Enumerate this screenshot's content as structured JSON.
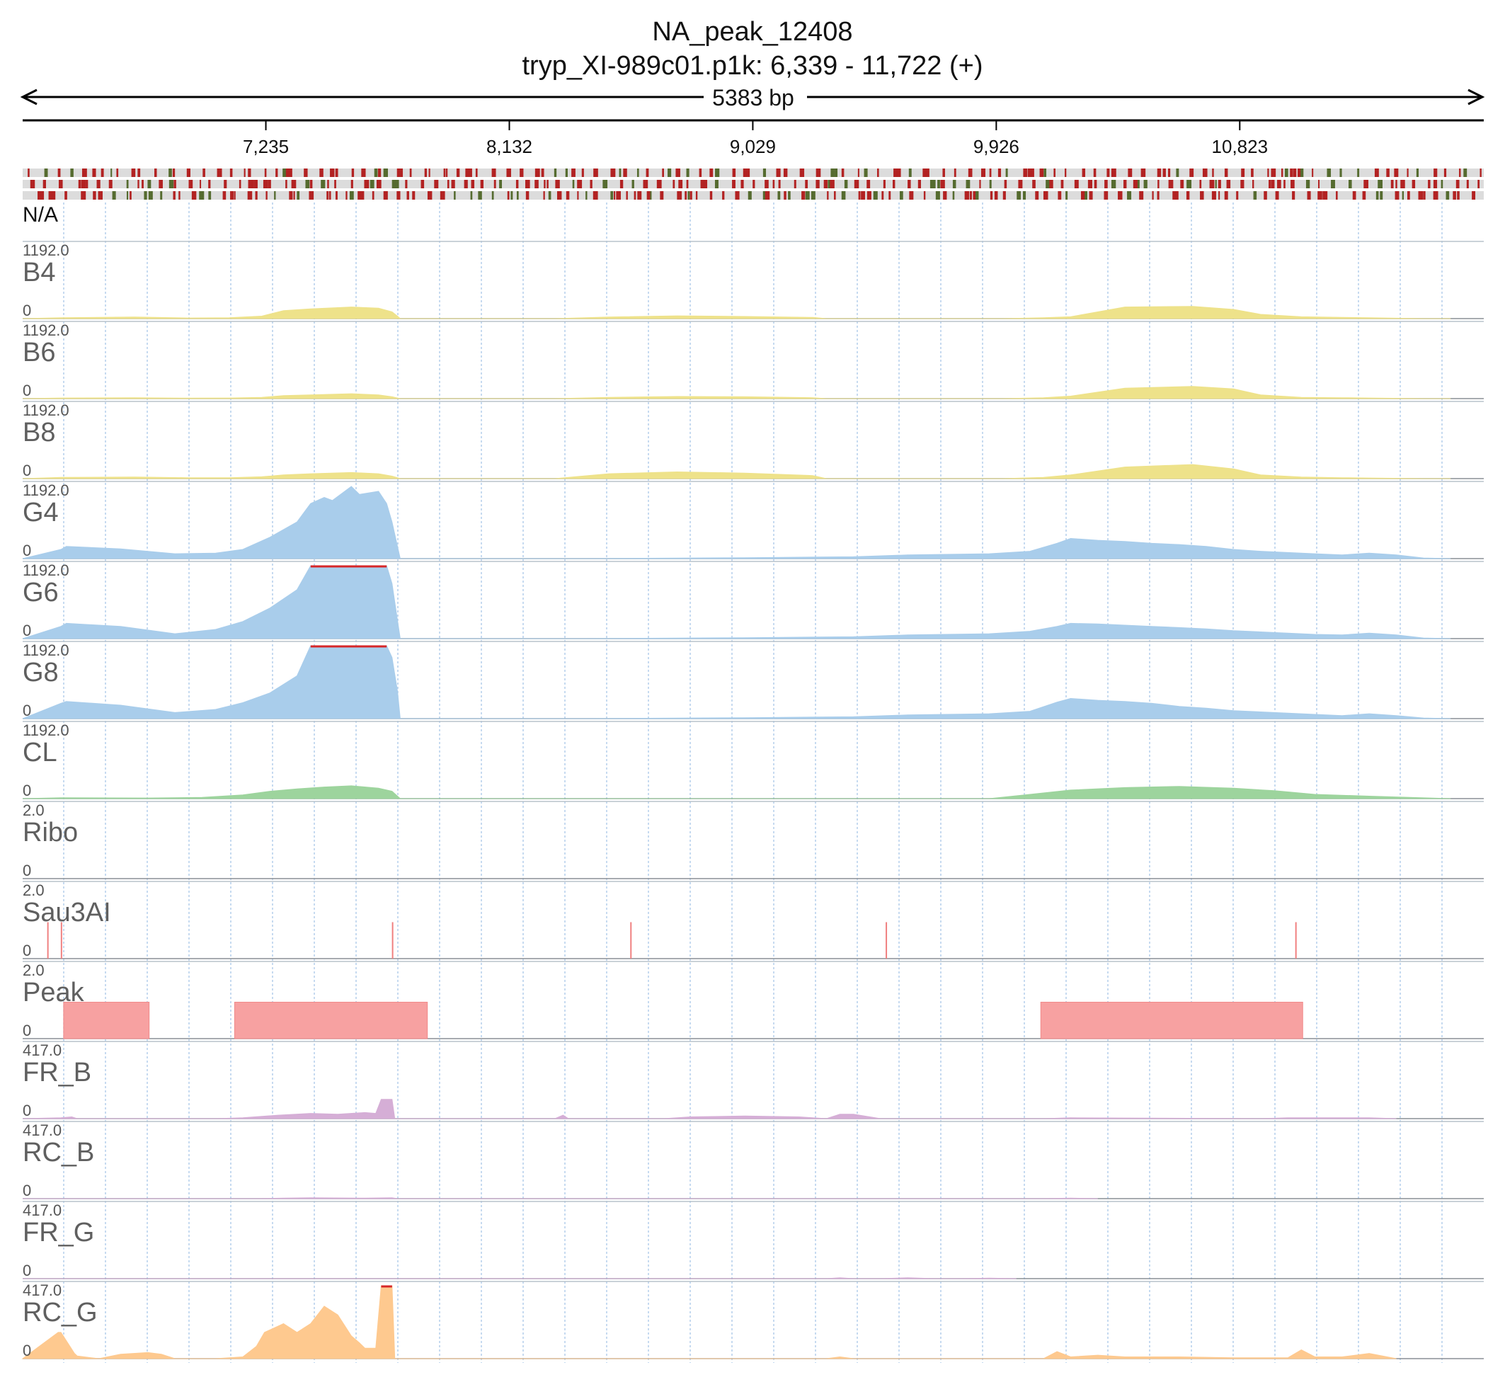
{
  "header": {
    "title": "NA_peak_12408",
    "subtitle": "tryp_XI-989c01.p1k: 6,339 - 11,722 (+)",
    "span_label": "5383 bp"
  },
  "chart_data": {
    "type": "area",
    "xlim": [
      6339,
      11722
    ],
    "ruler_ticks": [
      {
        "pos": 7235,
        "label": "7,235"
      },
      {
        "pos": 8132,
        "label": "8,132"
      },
      {
        "pos": 9029,
        "label": "9,029"
      },
      {
        "pos": 9926,
        "label": "9,926"
      },
      {
        "pos": 10823,
        "label": "10,823"
      }
    ],
    "annotation_track": {
      "label": "N/A",
      "colors": [
        "#b22222",
        "#556b2f"
      ],
      "background": "#dcdcdc"
    },
    "tracks": [
      {
        "name": "B4",
        "max_label": "1192.0",
        "min_label": "0",
        "ymax": 1192,
        "color": "#eee28a",
        "clip": "",
        "x": [
          6339,
          6480,
          6750,
          6950,
          7100,
          7220,
          7300,
          7400,
          7550,
          7650,
          7700,
          7720,
          7730,
          8300,
          8500,
          8750,
          9000,
          9250,
          9300,
          9950,
          10100,
          10200,
          10400,
          10650,
          10800,
          10900,
          11050,
          11200,
          11300,
          11500,
          11600
        ],
        "y": [
          0,
          15,
          25,
          10,
          15,
          40,
          130,
          160,
          190,
          170,
          110,
          40,
          0,
          0,
          25,
          45,
          35,
          20,
          0,
          0,
          15,
          30,
          190,
          200,
          150,
          70,
          30,
          20,
          15,
          0,
          0
        ]
      },
      {
        "name": "B6",
        "max_label": "1192.0",
        "min_label": "0",
        "ymax": 1192,
        "color": "#eee28a",
        "clip": "",
        "x": [
          6339,
          6480,
          6750,
          6950,
          7100,
          7220,
          7300,
          7400,
          7550,
          7650,
          7700,
          7720,
          7730,
          8300,
          8500,
          8750,
          9000,
          9250,
          9300,
          9950,
          10100,
          10200,
          10400,
          10650,
          10800,
          10900,
          11050,
          11200,
          11300,
          11500,
          11600
        ],
        "y": [
          0,
          10,
          15,
          8,
          10,
          20,
          50,
          60,
          80,
          60,
          30,
          10,
          0,
          0,
          20,
          35,
          30,
          15,
          0,
          0,
          15,
          40,
          170,
          200,
          160,
          60,
          20,
          15,
          10,
          0,
          0
        ]
      },
      {
        "name": "B8",
        "max_label": "1192.0",
        "min_label": "0",
        "ymax": 1192,
        "color": "#eee28a",
        "clip": "",
        "x": [
          6339,
          6480,
          6750,
          6950,
          7100,
          7220,
          7300,
          7400,
          7550,
          7650,
          7700,
          7720,
          7730,
          8300,
          8400,
          8500,
          8750,
          9000,
          9250,
          9300,
          9950,
          10100,
          10200,
          10400,
          10650,
          10800,
          10900,
          11050,
          11200,
          11300,
          11500,
          11600
        ],
        "y": [
          0,
          20,
          25,
          15,
          15,
          30,
          60,
          80,
          100,
          80,
          40,
          15,
          0,
          0,
          40,
          80,
          110,
          90,
          50,
          0,
          0,
          20,
          60,
          190,
          230,
          160,
          60,
          25,
          15,
          10,
          0,
          0
        ]
      },
      {
        "name": "G4",
        "max_label": "1192.0",
        "min_label": "0",
        "ymax": 1192,
        "color": "#a9cdeb",
        "clip": "",
        "x": [
          6339,
          6480,
          6500,
          6700,
          6900,
          7050,
          7150,
          7250,
          7350,
          7400,
          7450,
          7480,
          7550,
          7580,
          7650,
          7680,
          7700,
          7720,
          7730,
          8400,
          9000,
          9400,
          9600,
          9900,
          10050,
          10150,
          10200,
          10300,
          10400,
          10500,
          10600,
          10700,
          10800,
          10900,
          11000,
          11100,
          11200,
          11300,
          11400,
          11500,
          11600
        ],
        "y": [
          0,
          150,
          200,
          160,
          80,
          90,
          150,
          350,
          600,
          900,
          1000,
          950,
          1180,
          1050,
          1100,
          900,
          600,
          200,
          0,
          0,
          15,
          30,
          60,
          80,
          120,
          250,
          330,
          300,
          280,
          250,
          230,
          200,
          150,
          120,
          100,
          80,
          60,
          90,
          60,
          10,
          0
        ]
      },
      {
        "name": "G6",
        "max_label": "1192.0",
        "min_label": "0",
        "ymax": 1192,
        "color": "#a9cdeb",
        "clip": "#d62728",
        "x": [
          6339,
          6480,
          6500,
          6700,
          6900,
          7050,
          7150,
          7250,
          7350,
          7400,
          7450,
          7480,
          7550,
          7580,
          7650,
          7680,
          7700,
          7720,
          7730,
          8400,
          9000,
          9400,
          9600,
          9900,
          10050,
          10150,
          10200,
          10300,
          10400,
          10500,
          10600,
          10700,
          10800,
          10900,
          11000,
          11100,
          11200,
          11300,
          11400,
          11500,
          11600
        ],
        "y": [
          0,
          200,
          250,
          200,
          80,
          150,
          280,
          500,
          800,
          1250,
          1250,
          1250,
          1250,
          1250,
          1250,
          1250,
          900,
          300,
          0,
          0,
          15,
          30,
          60,
          80,
          120,
          200,
          250,
          240,
          220,
          200,
          180,
          160,
          130,
          110,
          90,
          70,
          60,
          90,
          60,
          10,
          0
        ]
      },
      {
        "name": "G8",
        "max_label": "1192.0",
        "min_label": "0",
        "ymax": 1192,
        "color": "#a9cdeb",
        "clip": "#d62728",
        "x": [
          6339,
          6480,
          6500,
          6700,
          6900,
          7050,
          7150,
          7250,
          7350,
          7400,
          7450,
          7480,
          7550,
          7580,
          7650,
          7680,
          7700,
          7720,
          7730,
          8400,
          9000,
          9400,
          9600,
          9900,
          10050,
          10150,
          10200,
          10300,
          10400,
          10500,
          10600,
          10700,
          10800,
          10900,
          11000,
          11100,
          11200,
          11300,
          11400,
          11500,
          11600
        ],
        "y": [
          0,
          250,
          280,
          220,
          100,
          150,
          260,
          420,
          700,
          1200,
          1250,
          1250,
          1250,
          1250,
          1250,
          1250,
          1000,
          450,
          0,
          0,
          15,
          30,
          60,
          80,
          120,
          270,
          330,
          300,
          280,
          250,
          200,
          170,
          130,
          110,
          90,
          70,
          50,
          80,
          50,
          10,
          0
        ]
      },
      {
        "name": "CL",
        "max_label": "1192.0",
        "min_label": "0",
        "ymax": 1192,
        "color": "#9dd49d",
        "clip": "",
        "x": [
          6339,
          6480,
          6800,
          7000,
          7150,
          7250,
          7350,
          7450,
          7550,
          7650,
          7700,
          7720,
          7730,
          9900,
          10050,
          10200,
          10400,
          10600,
          10800,
          10950,
          11100,
          11300,
          11450,
          11600
        ],
        "y": [
          0,
          15,
          10,
          20,
          60,
          120,
          160,
          190,
          210,
          170,
          120,
          40,
          0,
          0,
          70,
          140,
          180,
          200,
          170,
          130,
          70,
          40,
          20,
          0
        ],
        "ymax_note": ""
      },
      {
        "name": "Ribo",
        "max_label": "2.0",
        "min_label": "0",
        "ymax": 2,
        "color": "#d62728",
        "clip": "",
        "x": [],
        "y": []
      },
      {
        "name": "Sau3AI",
        "max_label": "2.0",
        "min_label": "0",
        "ymax": 2,
        "color": "#f08080",
        "clip": "",
        "style": "spikes",
        "x": [
          6432,
          6482,
          7702,
          8580,
          9521,
          11030
        ],
        "y": [
          1,
          1,
          1,
          1,
          1,
          1
        ]
      },
      {
        "name": "Peak",
        "max_label": "2.0",
        "min_label": "0",
        "ymax": 2,
        "color": "#f7a1a1",
        "clip": "",
        "style": "blocks",
        "blocks": [
          [
            6490,
            6805
          ],
          [
            7120,
            7830
          ],
          [
            10090,
            11055
          ]
        ],
        "value": 1
      },
      {
        "name": "FR_B",
        "max_label": "417.0",
        "min_label": "0",
        "ymax": 417,
        "color": "#d5aed6",
        "clip": "",
        "x": [
          6339,
          6480,
          6520,
          6540,
          7050,
          7150,
          7280,
          7400,
          7500,
          7600,
          7640,
          7660,
          7680,
          7700,
          7710,
          8300,
          8330,
          8350,
          8700,
          8800,
          9000,
          9200,
          9300,
          9350,
          9400,
          9500,
          10100,
          10200,
          10900,
          11000,
          11300,
          11400
        ],
        "y": [
          0,
          5,
          10,
          0,
          0,
          5,
          20,
          30,
          25,
          35,
          30,
          110,
          110,
          110,
          0,
          0,
          20,
          0,
          0,
          10,
          15,
          10,
          0,
          25,
          25,
          0,
          0,
          5,
          0,
          5,
          5,
          0
        ]
      },
      {
        "name": "RC_B",
        "max_label": "417.0",
        "min_label": "0",
        "ymax": 417,
        "color": "#d5aed6",
        "clip": "",
        "x": [
          6339,
          7200,
          7300,
          7400,
          7600,
          7700,
          7720,
          10100,
          10200,
          10300
        ],
        "y": [
          0,
          0,
          3,
          5,
          3,
          5,
          0,
          0,
          3,
          0
        ]
      },
      {
        "name": "FR_G",
        "max_label": "417.0",
        "min_label": "0",
        "ymax": 417,
        "color": "#d5aed6",
        "clip": "",
        "x": [
          6339,
          9300,
          9350,
          9400,
          9500,
          9600,
          9700,
          9800,
          9900,
          10000
        ],
        "y": [
          0,
          0,
          5,
          0,
          0,
          5,
          0,
          0,
          3,
          0
        ]
      },
      {
        "name": "RC_G",
        "max_label": "417.0",
        "min_label": "0",
        "ymax": 417,
        "color": "#fec98f",
        "clip": "#d62728",
        "x": [
          6339,
          6470,
          6480,
          6530,
          6540,
          6620,
          6700,
          6800,
          6850,
          6900,
          6950,
          7050,
          7150,
          7200,
          7230,
          7300,
          7350,
          7400,
          7450,
          7500,
          7550,
          7580,
          7600,
          7640,
          7660,
          7680,
          7700,
          7710,
          8000,
          9300,
          9350,
          9400,
          10100,
          10150,
          10200,
          10300,
          10400,
          10600,
          10800,
          11000,
          11050,
          11100,
          11200,
          11300,
          11400
        ],
        "y": [
          0,
          150,
          150,
          30,
          15,
          0,
          25,
          35,
          25,
          0,
          0,
          0,
          10,
          70,
          150,
          200,
          150,
          200,
          300,
          250,
          130,
          90,
          60,
          60,
          480,
          480,
          480,
          0,
          0,
          0,
          10,
          0,
          0,
          40,
          10,
          20,
          10,
          10,
          5,
          5,
          50,
          10,
          10,
          30,
          0
        ]
      }
    ]
  }
}
